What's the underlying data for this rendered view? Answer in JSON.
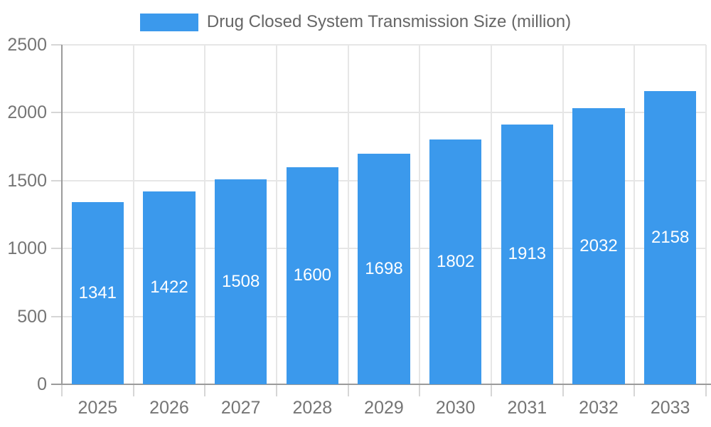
{
  "legend": {
    "series_label": "Drug Closed System Transmission Size (million)"
  },
  "chart_data": {
    "type": "bar",
    "title": "Drug Closed System Transmission Size (million)",
    "series_name": "Drug Closed System Transmission Size (million)",
    "categories": [
      "2025",
      "2026",
      "2027",
      "2028",
      "2029",
      "2030",
      "2031",
      "2032",
      "2033"
    ],
    "values": [
      1341,
      1422,
      1508,
      1600,
      1698,
      1802,
      1913,
      2032,
      2158
    ],
    "xlabel": "",
    "ylabel": "",
    "ylim": [
      0,
      2500
    ],
    "yticks": [
      0,
      500,
      1000,
      1500,
      2000,
      2500
    ],
    "grid": true,
    "legend_position": "top",
    "bar_color": "#3b99ec",
    "value_label_color": "#ffffff",
    "grid_color": "#e6e6e6",
    "axis_color": "#9b9b9b",
    "tick_color": "#d6d6d6",
    "text_color": "#757575"
  }
}
